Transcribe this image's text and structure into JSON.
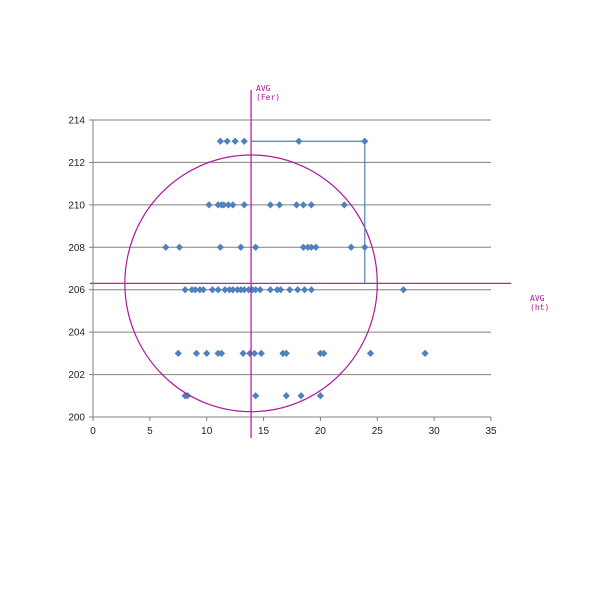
{
  "chart_data": {
    "type": "scatter",
    "title": "",
    "xlabel": "",
    "ylabel": "",
    "xlim": [
      0,
      35
    ],
    "ylim": [
      200,
      214
    ],
    "x_ticks": [
      0,
      5,
      10,
      15,
      20,
      25,
      30,
      35
    ],
    "y_ticks": [
      200,
      202,
      204,
      206,
      208,
      210,
      212,
      214
    ],
    "x_tick_labels": [
      "0",
      "5",
      "10",
      "15",
      "20",
      "25",
      "30",
      "35"
    ],
    "y_tick_labels": [
      "200",
      "202",
      "204",
      "206",
      "208",
      "210",
      "212",
      "214"
    ],
    "grid": "horizontal",
    "legend": "none",
    "marker": "diamond",
    "colors": {
      "points": "#4f81bd",
      "grid": "#808080",
      "axis": "#808080",
      "avg_lines": "#c41ab0",
      "circle": "#b0169e",
      "bracket": "#4f81bd"
    },
    "series": [
      {
        "points": [
          [
            11.2,
            213
          ],
          [
            11.8,
            213
          ],
          [
            12.5,
            213
          ],
          [
            13.3,
            213
          ],
          [
            18.1,
            213
          ],
          [
            23.9,
            213
          ],
          [
            10.2,
            210
          ],
          [
            11.0,
            210
          ],
          [
            11.3,
            210
          ],
          [
            11.5,
            210
          ],
          [
            11.9,
            210
          ],
          [
            12.3,
            210
          ],
          [
            13.3,
            210
          ],
          [
            15.6,
            210
          ],
          [
            16.4,
            210
          ],
          [
            17.9,
            210
          ],
          [
            18.5,
            210
          ],
          [
            19.2,
            210
          ],
          [
            22.1,
            210
          ],
          [
            6.4,
            208
          ],
          [
            7.6,
            208
          ],
          [
            11.2,
            208
          ],
          [
            13.0,
            208
          ],
          [
            14.3,
            208
          ],
          [
            18.5,
            208
          ],
          [
            18.9,
            208
          ],
          [
            19.2,
            208
          ],
          [
            19.6,
            208
          ],
          [
            22.7,
            208
          ],
          [
            23.9,
            208
          ],
          [
            8.1,
            206
          ],
          [
            8.7,
            206
          ],
          [
            9.0,
            206
          ],
          [
            9.4,
            206
          ],
          [
            9.7,
            206
          ],
          [
            10.5,
            206
          ],
          [
            11.0,
            206
          ],
          [
            11.6,
            206
          ],
          [
            12.0,
            206
          ],
          [
            12.3,
            206
          ],
          [
            12.7,
            206
          ],
          [
            13.0,
            206
          ],
          [
            13.3,
            206
          ],
          [
            13.7,
            206
          ],
          [
            14.0,
            206
          ],
          [
            14.3,
            206
          ],
          [
            14.7,
            206
          ],
          [
            15.6,
            206
          ],
          [
            16.2,
            206
          ],
          [
            16.5,
            206
          ],
          [
            17.3,
            206
          ],
          [
            18.0,
            206
          ],
          [
            18.6,
            206
          ],
          [
            19.2,
            206
          ],
          [
            27.3,
            206
          ],
          [
            7.5,
            203
          ],
          [
            9.1,
            203
          ],
          [
            10.0,
            203
          ],
          [
            11.0,
            203
          ],
          [
            11.3,
            203
          ],
          [
            13.2,
            203
          ],
          [
            13.8,
            203
          ],
          [
            14.2,
            203
          ],
          [
            14.8,
            203
          ],
          [
            16.7,
            203
          ],
          [
            17.0,
            203
          ],
          [
            20.0,
            203
          ],
          [
            20.3,
            203
          ],
          [
            24.4,
            203
          ],
          [
            29.2,
            203
          ],
          [
            8.1,
            201
          ],
          [
            8.3,
            201
          ],
          [
            14.3,
            201
          ],
          [
            17.0,
            201
          ],
          [
            18.3,
            201
          ],
          [
            20.0,
            201
          ]
        ]
      }
    ],
    "reference_lines": {
      "vertical": {
        "x": 13.9,
        "label_line1": "AVG",
        "label_line2": "(Fer)"
      },
      "horizontal": {
        "y": 206.3,
        "label_line1": "AVG",
        "label_line2": "(ht)"
      }
    },
    "circle": {
      "center_x": 13.9,
      "center_y": 206.3,
      "radius_x": 11.1,
      "radius_y": 6.05
    },
    "bracket": {
      "x_from": 13.9,
      "x_to": 23.9,
      "y_top": 213,
      "y_bottom": 206.3
    }
  }
}
